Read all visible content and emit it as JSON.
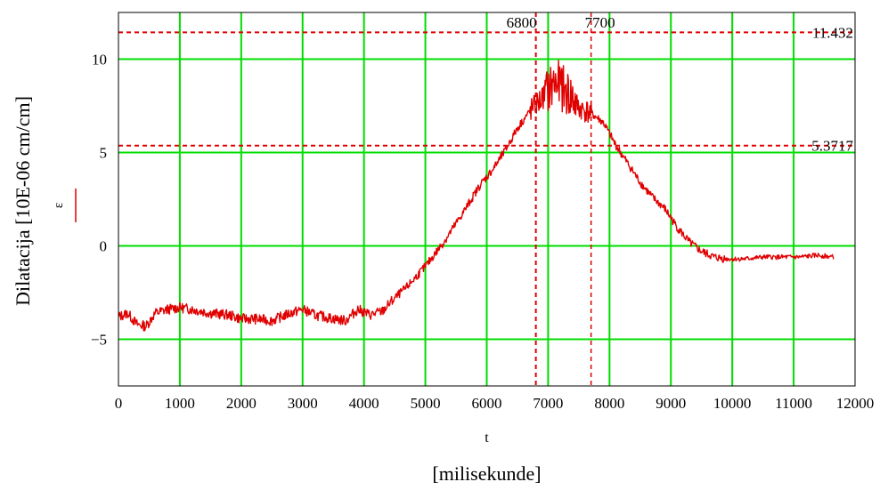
{
  "chart_data": {
    "type": "line",
    "xlabel": "t",
    "xunit": "[milisekunde]",
    "ylabel": "Dilatacija [10E-06 cm/cm]",
    "legend": [
      {
        "name": "ε",
        "color": "#e00000",
        "placement": "left"
      }
    ],
    "xlim": [
      0,
      12000
    ],
    "ylim": [
      -7.5,
      12.5
    ],
    "xticks": [
      0,
      1000,
      2000,
      3000,
      4000,
      5000,
      6000,
      7000,
      8000,
      9000,
      10000,
      11000,
      12000
    ],
    "yticks": [
      -5,
      0,
      5,
      10
    ],
    "ytick_labels": [
      "−5",
      "0",
      "5",
      "10"
    ],
    "grid": true,
    "grid_color": "#00dd00",
    "series_color": "#e00000",
    "horizontal_markers": [
      {
        "value": 11.432,
        "label": "11.432"
      },
      {
        "value": 5.3717,
        "label": "5.3717"
      }
    ],
    "vertical_markers": [
      {
        "value": 6800,
        "label": "6800"
      },
      {
        "value": 7700,
        "label": "7700"
      }
    ],
    "series": [
      {
        "name": "ε",
        "x": [
          0,
          150,
          300,
          450,
          600,
          800,
          1000,
          1200,
          1500,
          1800,
          2000,
          2200,
          2500,
          2800,
          3000,
          3200,
          3500,
          3700,
          3900,
          4100,
          4300,
          4500,
          4700,
          5000,
          5300,
          5600,
          5900,
          6100,
          6300,
          6500,
          6700,
          6900,
          7000,
          7100,
          7200,
          7300,
          7400,
          7500,
          7700,
          7900,
          8100,
          8300,
          8500,
          8700,
          8900,
          9100,
          9300,
          9500,
          9700,
          9900,
          10200,
          10500,
          10800,
          11100,
          11400,
          11650
        ],
        "y": [
          -3.8,
          -3.6,
          -4.2,
          -4.3,
          -3.6,
          -3.4,
          -3.3,
          -3.4,
          -3.6,
          -3.7,
          -3.9,
          -3.9,
          -4.0,
          -3.6,
          -3.4,
          -3.7,
          -3.9,
          -4.0,
          -3.4,
          -3.7,
          -3.5,
          -2.8,
          -2.2,
          -1.1,
          0.2,
          1.7,
          3.3,
          4.1,
          5.1,
          6.3,
          7.2,
          7.9,
          8.3,
          8.7,
          8.6,
          8.2,
          7.9,
          7.4,
          7.1,
          6.6,
          5.4,
          4.4,
          3.4,
          2.6,
          2.0,
          1.0,
          0.2,
          -0.3,
          -0.6,
          -0.7,
          -0.7,
          -0.6,
          -0.6,
          -0.6,
          -0.5,
          -0.6
        ]
      }
    ]
  }
}
